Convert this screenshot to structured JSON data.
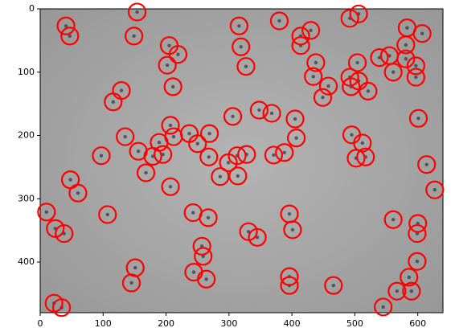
{
  "chart_data": {
    "type": "scatter",
    "x": [
      41,
      47,
      154,
      149,
      205,
      219,
      202,
      211,
      316,
      319,
      327,
      380,
      414,
      430,
      414,
      438,
      434,
      458,
      449,
      492,
      506,
      504,
      492,
      494,
      506,
      521,
      539,
      555,
      583,
      607,
      581,
      581,
      597,
      561,
      597,
      601,
      129,
      116,
      135,
      156,
      179,
      189,
      195,
      207,
      212,
      237,
      250,
      269,
      268,
      97,
      168,
      207,
      48,
      60,
      299,
      286,
      313,
      328,
      314,
      306,
      348,
      368,
      405,
      407,
      371,
      388,
      495,
      512,
      502,
      517,
      614,
      627,
      10,
      24,
      38,
      107,
      243,
      267,
      257,
      259,
      244,
      264,
      151,
      145,
      331,
      345,
      396,
      401,
      396,
      396,
      561,
      600,
      599,
      599,
      586,
      567,
      590,
      466,
      545,
      22,
      34
    ],
    "values": [
      27,
      43,
      5,
      43,
      58,
      72,
      89,
      123,
      27,
      60,
      91,
      19,
      43,
      34,
      58,
      85,
      107,
      122,
      140,
      15,
      8,
      85,
      108,
      123,
      114,
      130,
      77,
      74,
      30,
      39,
      57,
      79,
      90,
      100,
      108,
      173,
      129,
      147,
      202,
      225,
      233,
      211,
      230,
      184,
      202,
      197,
      213,
      197,
      234,
      232,
      259,
      281,
      270,
      291,
      243,
      265,
      232,
      230,
      264,
      170,
      160,
      165,
      174,
      204,
      231,
      227,
      199,
      212,
      236,
      234,
      246,
      286,
      321,
      347,
      355,
      325,
      322,
      330,
      375,
      391,
      416,
      427,
      409,
      433,
      352,
      361,
      324,
      349,
      423,
      437,
      333,
      339,
      355,
      399,
      424,
      446,
      446,
      437,
      471,
      465,
      472
    ],
    "color": "#ff0000",
    "xlim": [
      0,
      640
    ],
    "ylim": [
      480,
      0
    ],
    "xticks": [
      0,
      100,
      200,
      300,
      400,
      500,
      600
    ],
    "yticks": [
      0,
      100,
      200,
      300,
      400
    ]
  }
}
